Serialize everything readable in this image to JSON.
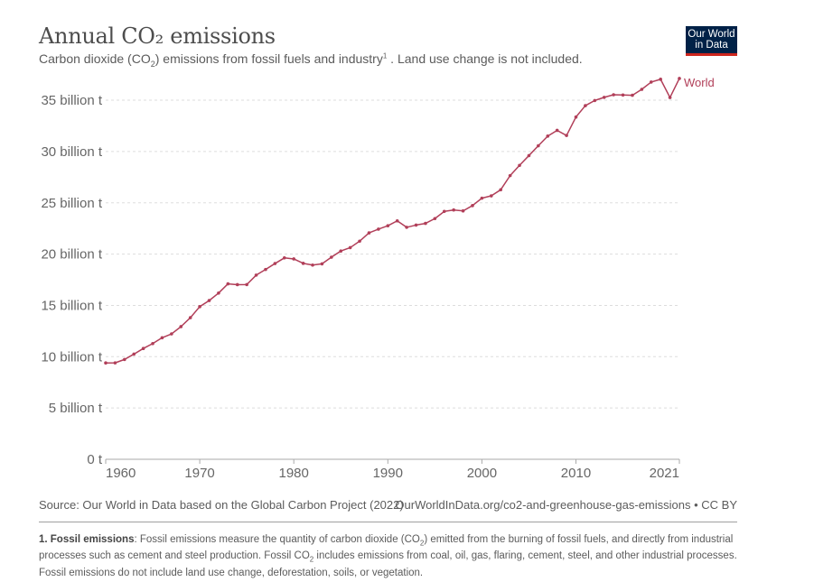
{
  "header": {
    "title": "Annual CO₂ emissions",
    "subtitle_pre": "Carbon dioxide (CO",
    "subtitle_sub": "2",
    "subtitle_mid": ") emissions from fossil fuels and industry",
    "subtitle_sup": "1",
    "subtitle_post": " . Land use change is not included.",
    "logo_line1": "Our World",
    "logo_line2": "in Data"
  },
  "footer": {
    "source": "Source: Our World in Data based on the Global Carbon Project (2022)",
    "url": "OurWorldInData.org/co2-and-greenhouse-gas-emissions • CC BY",
    "note_label": "1. Fossil emissions",
    "note_p1": ": Fossil emissions measure the quantity of carbon dioxide (CO",
    "note_sub1": "2",
    "note_p2": ") emitted from the burning of fossil fuels, and directly from industrial processes such as cement and steel production. Fossil CO",
    "note_sub2": "2",
    "note_p3": " includes emissions from coal, oil, gas, flaring, cement, steel, and other industrial processes. Fossil emissions do not include land use change, deforestation, soils, or vegetation."
  },
  "colors": {
    "series": "#b13f59",
    "logo_bg": "#002147",
    "logo_accent": "#ce261e"
  },
  "chart_data": {
    "type": "line",
    "title": "Annual CO₂ emissions",
    "xlabel": "",
    "ylabel": "",
    "xlim": [
      1960,
      2021
    ],
    "ylim": [
      0,
      35
    ],
    "x_ticks": [
      1960,
      1970,
      1980,
      1990,
      2000,
      2010,
      2021
    ],
    "y_ticks": [
      {
        "value": 0,
        "label": "0 t"
      },
      {
        "value": 5,
        "label": "5 billion t"
      },
      {
        "value": 10,
        "label": "10 billion t"
      },
      {
        "value": 15,
        "label": "15 billion t"
      },
      {
        "value": 20,
        "label": "20 billion t"
      },
      {
        "value": 25,
        "label": "25 billion t"
      },
      {
        "value": 30,
        "label": "30 billion t"
      },
      {
        "value": 35,
        "label": "35 billion t"
      }
    ],
    "grid": "horizontal dashed",
    "units": "billion tonnes",
    "x": [
      1960,
      1961,
      1962,
      1963,
      1964,
      1965,
      1966,
      1967,
      1968,
      1969,
      1970,
      1971,
      1972,
      1973,
      1974,
      1975,
      1976,
      1977,
      1978,
      1979,
      1980,
      1981,
      1982,
      1983,
      1984,
      1985,
      1986,
      1987,
      1988,
      1989,
      1990,
      1991,
      1992,
      1993,
      1994,
      1995,
      1996,
      1997,
      1998,
      1999,
      2000,
      2001,
      2002,
      2003,
      2004,
      2005,
      2006,
      2007,
      2008,
      2009,
      2010,
      2011,
      2012,
      2013,
      2014,
      2015,
      2016,
      2017,
      2018,
      2019,
      2020,
      2021
    ],
    "series": [
      {
        "name": "World",
        "values": [
          9.39,
          9.4,
          9.73,
          10.25,
          10.8,
          11.28,
          11.85,
          12.22,
          12.93,
          13.8,
          14.88,
          15.47,
          16.2,
          17.1,
          17.02,
          17.03,
          17.95,
          18.5,
          19.08,
          19.63,
          19.53,
          19.1,
          18.93,
          19.05,
          19.7,
          20.3,
          20.63,
          21.26,
          22.07,
          22.43,
          22.76,
          23.24,
          22.61,
          22.83,
          22.99,
          23.46,
          24.16,
          24.3,
          24.21,
          24.73,
          25.45,
          25.68,
          26.27,
          27.65,
          28.65,
          29.6,
          30.56,
          31.5,
          32.06,
          31.56,
          33.36,
          34.47,
          34.97,
          35.28,
          35.53,
          35.51,
          35.48,
          36.06,
          36.77,
          37.04,
          35.26,
          37.12
        ]
      }
    ],
    "legend": "inline-right"
  }
}
